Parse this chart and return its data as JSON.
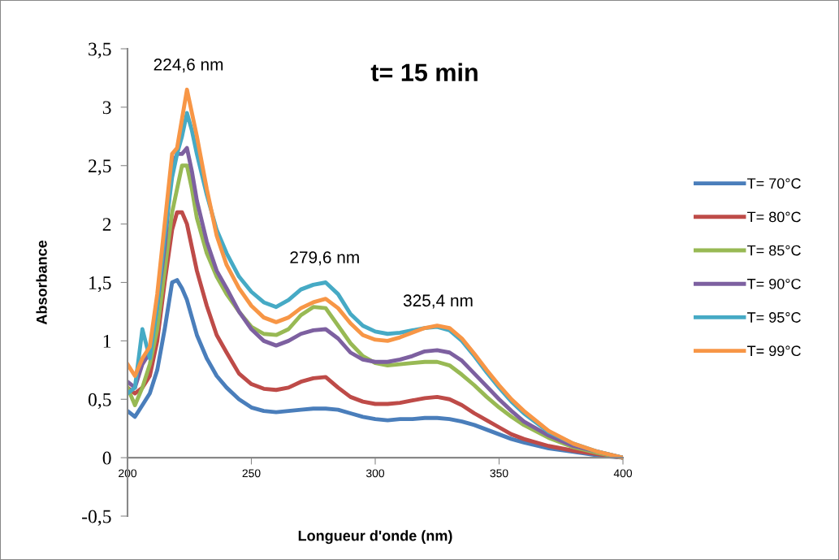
{
  "chart_data": {
    "type": "line",
    "title": "t= 15 min",
    "xlabel": "Longueur d'onde (nm)",
    "ylabel": "Absorbance",
    "x": [
      200,
      203,
      206,
      209,
      212,
      215,
      218,
      220,
      222,
      224,
      226,
      228,
      232,
      236,
      240,
      245,
      250,
      255,
      260,
      265,
      270,
      275,
      280,
      285,
      290,
      295,
      300,
      305,
      310,
      315,
      320,
      325,
      330,
      335,
      340,
      345,
      350,
      355,
      360,
      370,
      380,
      390,
      400
    ],
    "series": [
      {
        "name": "T= 70°C",
        "color": "#4a7ebb",
        "values": [
          0.4,
          0.35,
          0.45,
          0.55,
          0.75,
          1.1,
          1.5,
          1.52,
          1.45,
          1.35,
          1.2,
          1.05,
          0.85,
          0.7,
          0.6,
          0.5,
          0.43,
          0.4,
          0.39,
          0.4,
          0.41,
          0.42,
          0.42,
          0.41,
          0.38,
          0.35,
          0.33,
          0.32,
          0.33,
          0.33,
          0.34,
          0.34,
          0.33,
          0.31,
          0.28,
          0.24,
          0.2,
          0.16,
          0.13,
          0.08,
          0.05,
          0.02,
          0
        ]
      },
      {
        "name": "T= 80°C",
        "color": "#be4b48",
        "values": [
          0.6,
          0.55,
          0.6,
          0.7,
          1.0,
          1.5,
          1.95,
          2.1,
          2.1,
          2.0,
          1.8,
          1.6,
          1.3,
          1.05,
          0.9,
          0.72,
          0.63,
          0.59,
          0.58,
          0.6,
          0.65,
          0.68,
          0.69,
          0.6,
          0.52,
          0.48,
          0.46,
          0.46,
          0.47,
          0.49,
          0.51,
          0.52,
          0.5,
          0.45,
          0.38,
          0.32,
          0.26,
          0.2,
          0.16,
          0.1,
          0.06,
          0.03,
          0
        ]
      },
      {
        "name": "T= 85°C",
        "color": "#98b954",
        "values": [
          0.6,
          0.45,
          0.6,
          0.8,
          1.1,
          1.6,
          2.1,
          2.3,
          2.5,
          2.5,
          2.3,
          2.05,
          1.75,
          1.55,
          1.4,
          1.25,
          1.12,
          1.06,
          1.05,
          1.1,
          1.22,
          1.29,
          1.28,
          1.13,
          0.98,
          0.87,
          0.81,
          0.79,
          0.8,
          0.81,
          0.82,
          0.82,
          0.79,
          0.71,
          0.62,
          0.52,
          0.43,
          0.35,
          0.28,
          0.17,
          0.09,
          0.04,
          0
        ]
      },
      {
        "name": "T= 90°C",
        "color": "#7d60a0",
        "values": [
          0.65,
          0.6,
          0.8,
          0.9,
          1.3,
          1.8,
          2.5,
          2.6,
          2.6,
          2.65,
          2.45,
          2.2,
          1.85,
          1.6,
          1.45,
          1.25,
          1.1,
          1.0,
          0.96,
          1.0,
          1.06,
          1.09,
          1.1,
          1.02,
          0.9,
          0.84,
          0.82,
          0.82,
          0.84,
          0.87,
          0.91,
          0.92,
          0.9,
          0.83,
          0.72,
          0.61,
          0.5,
          0.4,
          0.31,
          0.19,
          0.1,
          0.05,
          0
        ]
      },
      {
        "name": "T= 95°C",
        "color": "#46aac5",
        "values": [
          0.55,
          0.6,
          1.1,
          0.85,
          1.3,
          1.9,
          2.4,
          2.6,
          2.75,
          2.95,
          2.8,
          2.6,
          2.25,
          1.95,
          1.75,
          1.55,
          1.42,
          1.33,
          1.29,
          1.35,
          1.44,
          1.48,
          1.5,
          1.4,
          1.23,
          1.13,
          1.08,
          1.06,
          1.07,
          1.09,
          1.11,
          1.12,
          1.09,
          1.0,
          0.87,
          0.73,
          0.6,
          0.48,
          0.38,
          0.22,
          0.12,
          0.05,
          0
        ]
      },
      {
        "name": "T= 99°C",
        "color": "#f79646",
        "values": [
          0.8,
          0.7,
          0.85,
          0.95,
          1.4,
          2.0,
          2.6,
          2.65,
          2.9,
          3.15,
          2.95,
          2.75,
          2.3,
          1.9,
          1.65,
          1.45,
          1.3,
          1.2,
          1.16,
          1.2,
          1.28,
          1.33,
          1.36,
          1.28,
          1.15,
          1.05,
          1.01,
          1.0,
          1.03,
          1.07,
          1.11,
          1.13,
          1.11,
          1.02,
          0.89,
          0.75,
          0.62,
          0.5,
          0.4,
          0.23,
          0.12,
          0.05,
          0
        ]
      }
    ],
    "annotations": [
      {
        "text": "224,6 nm",
        "x": 224.6,
        "y": 3.15
      },
      {
        "text": "279,6 nm",
        "x": 279.6,
        "y": 1.5
      },
      {
        "text": "325,4 nm",
        "x": 325.4,
        "y": 1.13
      }
    ],
    "xlim": [
      200,
      400
    ],
    "xticks": [
      200,
      250,
      300,
      350,
      400
    ],
    "ylim": [
      -0.5,
      3.5
    ],
    "yticks": [
      {
        "value": -0.5,
        "label": "-0,5"
      },
      0,
      {
        "value": 0.5,
        "label": "0,5"
      },
      1,
      {
        "value": 1.5,
        "label": "1,5"
      },
      2,
      {
        "value": 2.5,
        "label": "2,5"
      },
      3,
      {
        "value": 3.5,
        "label": "3,5"
      }
    ],
    "grid": false,
    "legend": "right",
    "marker": "none",
    "line_style": "solid"
  }
}
